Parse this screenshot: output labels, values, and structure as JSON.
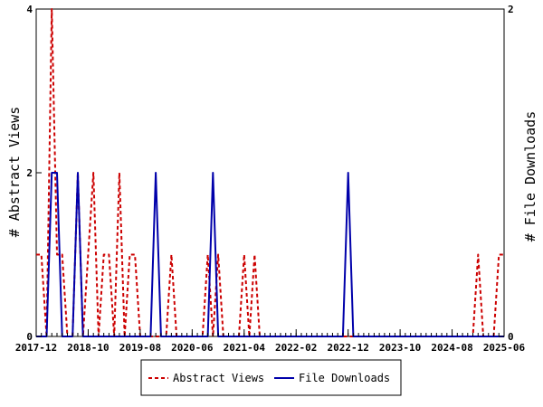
{
  "chart_data": {
    "type": "line",
    "title": "",
    "xlabel": "",
    "ylabel_left": "# Abstract Views",
    "ylabel_right": "# File Downloads",
    "x_tick_labels": [
      "2017-12",
      "2018-10",
      "2019-08",
      "2020-06",
      "2021-04",
      "2022-02",
      "2022-12",
      "2023-10",
      "2024-08",
      "2025-06"
    ],
    "ylim_left": [
      0,
      4
    ],
    "ylim_right": [
      0,
      2
    ],
    "y_ticks_left": [
      "0",
      "2",
      "4"
    ],
    "y_ticks_right": [
      "0",
      "2"
    ],
    "legend_position": "bottom",
    "colors": {
      "abstract": "#cc0000",
      "downloads": "#0000aa"
    },
    "series": [
      {
        "name": "Abstract Views",
        "axis": "left",
        "style": "dashed",
        "x": [
          "2017-12",
          "2018-01",
          "2018-02",
          "2018-03",
          "2018-04",
          "2018-05",
          "2018-06",
          "2018-07",
          "2018-08",
          "2018-09",
          "2018-10",
          "2018-11",
          "2018-12",
          "2019-01",
          "2019-02",
          "2019-03",
          "2019-04",
          "2019-05",
          "2019-06",
          "2019-07",
          "2019-08",
          "2019-09",
          "2019-10",
          "2019-11",
          "2019-12",
          "2020-01",
          "2020-02",
          "2020-03",
          "2020-04",
          "2020-05",
          "2020-06",
          "2020-07",
          "2020-08",
          "2020-09",
          "2020-10",
          "2020-11",
          "2020-12",
          "2021-01",
          "2021-02",
          "2021-03",
          "2021-04",
          "2021-05",
          "2021-06",
          "2021-07",
          "2021-08",
          "2021-09",
          "2021-10",
          "2021-11",
          "2021-12",
          "2022-01",
          "2022-02",
          "2022-03",
          "2022-04",
          "2022-05",
          "2022-06",
          "2022-07",
          "2022-08",
          "2022-09",
          "2022-10",
          "2022-11",
          "2022-12",
          "2023-01",
          "2023-02",
          "2023-03",
          "2023-04",
          "2023-05",
          "2023-06",
          "2023-07",
          "2023-08",
          "2023-09",
          "2023-10",
          "2023-11",
          "2023-12",
          "2024-01",
          "2024-02",
          "2024-03",
          "2024-04",
          "2024-05",
          "2024-06",
          "2024-07",
          "2024-08",
          "2024-09",
          "2024-10",
          "2024-11",
          "2024-12",
          "2025-01",
          "2025-02",
          "2025-03",
          "2025-04",
          "2025-05",
          "2025-06"
        ],
        "values": [
          1,
          1,
          0,
          4,
          1,
          1,
          0,
          0,
          2,
          0,
          1,
          2,
          0,
          1,
          1,
          0,
          2,
          0,
          1,
          1,
          0,
          0,
          0,
          0,
          0,
          0,
          1,
          0,
          0,
          0,
          0,
          0,
          0,
          1,
          0,
          1,
          0,
          0,
          0,
          0,
          1,
          0,
          1,
          0,
          0,
          0,
          0,
          0,
          0,
          0,
          0,
          0,
          0,
          0,
          0,
          0,
          0,
          0,
          0,
          0,
          0,
          0,
          0,
          0,
          0,
          0,
          0,
          0,
          0,
          0,
          0,
          0,
          0,
          0,
          0,
          0,
          0,
          0,
          0,
          0,
          0,
          0,
          0,
          0,
          0,
          1,
          0,
          0,
          0,
          1,
          1
        ]
      },
      {
        "name": "File Downloads",
        "axis": "right",
        "style": "solid",
        "x": [
          "2017-12",
          "2018-01",
          "2018-02",
          "2018-03",
          "2018-04",
          "2018-05",
          "2018-06",
          "2018-07",
          "2018-08",
          "2018-09",
          "2018-10",
          "2018-11",
          "2018-12",
          "2019-01",
          "2019-02",
          "2019-03",
          "2019-04",
          "2019-05",
          "2019-06",
          "2019-07",
          "2019-08",
          "2019-09",
          "2019-10",
          "2019-11",
          "2019-12",
          "2020-01",
          "2020-02",
          "2020-03",
          "2020-04",
          "2020-05",
          "2020-06",
          "2020-07",
          "2020-08",
          "2020-09",
          "2020-10",
          "2020-11",
          "2020-12",
          "2021-01",
          "2021-02",
          "2021-03",
          "2021-04",
          "2021-05",
          "2021-06",
          "2021-07",
          "2021-08",
          "2021-09",
          "2021-10",
          "2021-11",
          "2021-12",
          "2022-01",
          "2022-02",
          "2022-03",
          "2022-04",
          "2022-05",
          "2022-06",
          "2022-07",
          "2022-08",
          "2022-09",
          "2022-10",
          "2022-11",
          "2022-12",
          "2023-01",
          "2023-02",
          "2023-03",
          "2023-04",
          "2023-05",
          "2023-06",
          "2023-07",
          "2023-08",
          "2023-09",
          "2023-10",
          "2023-11",
          "2023-12",
          "2024-01",
          "2024-02",
          "2024-03",
          "2024-04",
          "2024-05",
          "2024-06",
          "2024-07",
          "2024-08",
          "2024-09",
          "2024-10",
          "2024-11",
          "2024-12",
          "2025-01",
          "2025-02",
          "2025-03",
          "2025-04",
          "2025-05",
          "2025-06"
        ],
        "values": [
          0,
          0,
          0,
          1,
          1,
          0,
          0,
          0,
          1,
          0,
          0,
          0,
          0,
          0,
          0,
          0,
          0,
          0,
          0,
          0,
          0,
          0,
          0,
          1,
          0,
          0,
          0,
          0,
          0,
          0,
          0,
          0,
          0,
          0,
          1,
          0,
          0,
          0,
          0,
          0,
          0,
          0,
          0,
          0,
          0,
          0,
          0,
          0,
          0,
          0,
          0,
          0,
          0,
          0,
          0,
          0,
          0,
          0,
          0,
          0,
          1,
          0,
          0,
          0,
          0,
          0,
          0,
          0,
          0,
          0,
          0,
          0,
          0,
          0,
          0,
          0,
          0,
          0,
          0,
          0,
          0,
          0,
          0,
          0,
          0,
          0,
          0,
          0,
          0,
          0,
          0
        ]
      }
    ]
  }
}
